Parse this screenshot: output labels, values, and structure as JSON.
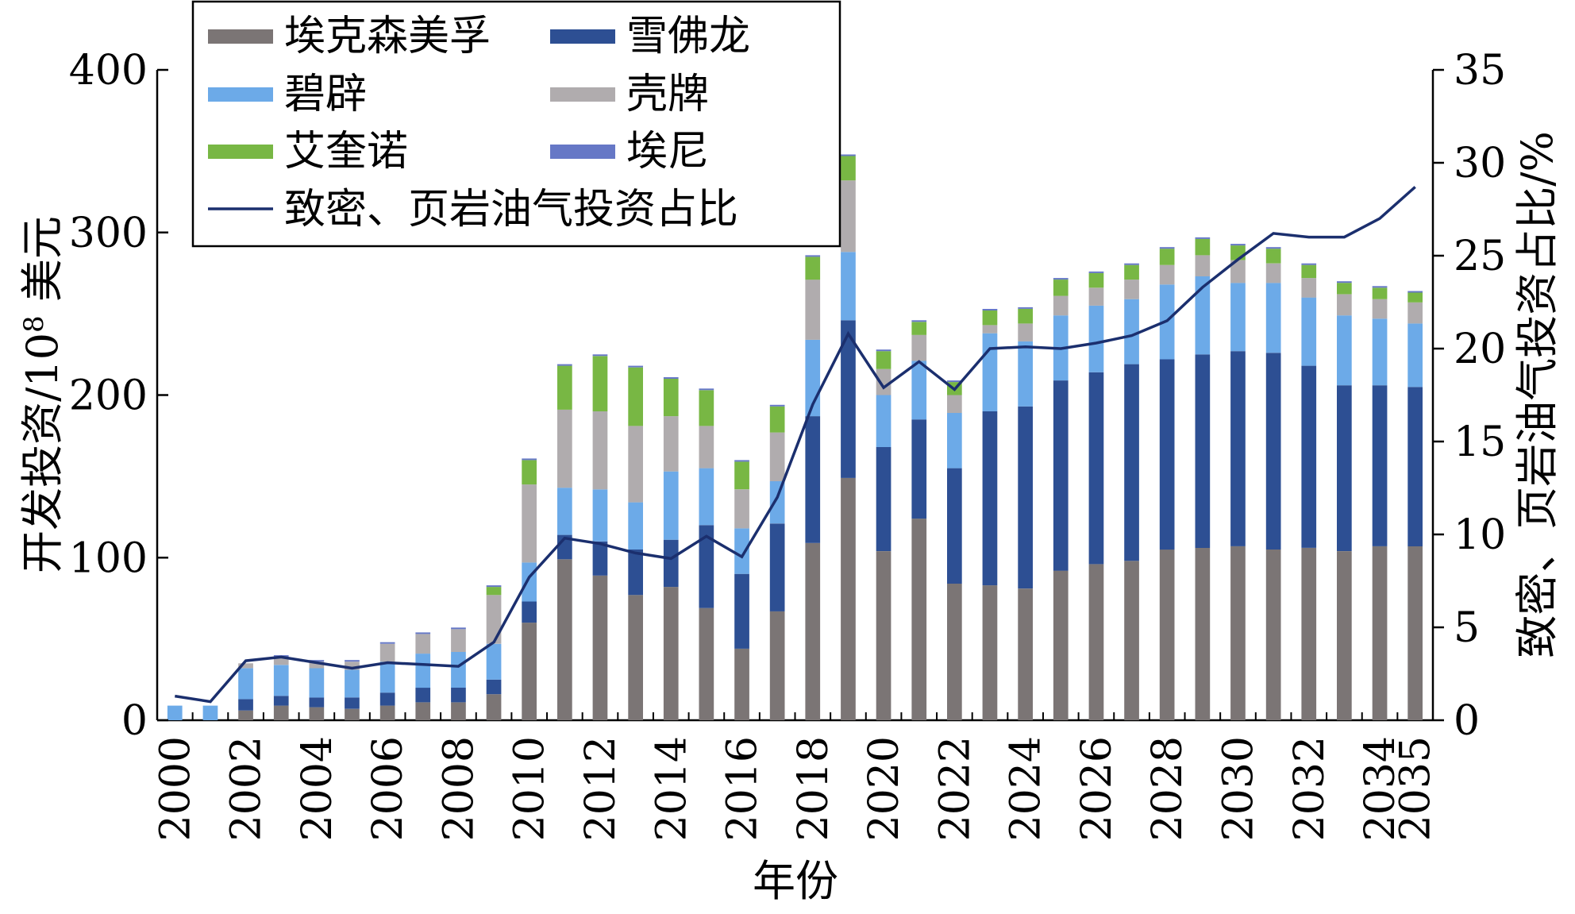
{
  "chart_data": {
    "type": "bar",
    "stacked": true,
    "xlabel": "年份",
    "ylabel": "开发投资/10⁸ 美元",
    "ylabel_parts": [
      "开发投资/10",
      "8",
      " 美元"
    ],
    "y2label": "致密、页岩油气投资占比/%",
    "ylim": [
      0,
      400
    ],
    "y2lim": [
      0,
      35
    ],
    "yticks": [
      "0",
      "100",
      "200",
      "300",
      "400"
    ],
    "y2ticks": [
      "0",
      "5",
      "10",
      "15",
      "20",
      "25",
      "30",
      "35"
    ],
    "x_tick_labels": [
      "2000",
      "2002",
      "2004",
      "2006",
      "2008",
      "2010",
      "2012",
      "2014",
      "2016",
      "2018",
      "2020",
      "2022",
      "2024",
      "2026",
      "2028",
      "2030",
      "2032",
      "2034",
      "2035"
    ],
    "categories": [
      2000,
      2001,
      2002,
      2003,
      2004,
      2005,
      2006,
      2007,
      2008,
      2009,
      2010,
      2011,
      2012,
      2013,
      2014,
      2015,
      2016,
      2017,
      2018,
      2019,
      2020,
      2021,
      2022,
      2023,
      2024,
      2025,
      2026,
      2027,
      2028,
      2029,
      2030,
      2031,
      2032,
      2033,
      2034,
      2035
    ],
    "series": [
      {
        "name": "埃克森美孚",
        "color": "#7b7575",
        "values": [
          0,
          0,
          6,
          9,
          8,
          7,
          9,
          11,
          11,
          16,
          60,
          99,
          89,
          77,
          82,
          69,
          44,
          67,
          109,
          149,
          104,
          124,
          84,
          83,
          81,
          92,
          96,
          98,
          105,
          106,
          107,
          105,
          106,
          104,
          107,
          107
        ]
      },
      {
        "name": "雪佛龙",
        "color": "#2d4f93",
        "values": [
          0,
          0,
          7,
          6,
          6,
          7,
          8,
          9,
          9,
          9,
          13,
          15,
          21,
          28,
          29,
          51,
          46,
          54,
          78,
          97,
          64,
          61,
          71,
          107,
          112,
          117,
          118,
          121,
          117,
          119,
          120,
          121,
          112,
          102,
          99,
          98
        ]
      },
      {
        "name": "碧辟",
        "color": "#6caae8",
        "values": [
          9,
          9,
          19,
          19,
          18,
          17,
          19,
          21,
          22,
          22,
          24,
          29,
          32,
          29,
          42,
          35,
          28,
          26,
          47,
          42,
          32,
          36,
          34,
          48,
          40,
          40,
          41,
          40,
          46,
          48,
          42,
          43,
          42,
          43,
          41,
          39
        ]
      },
      {
        "name": "壳牌",
        "color": "#b0acae",
        "values": [
          0,
          0,
          3,
          5,
          4,
          5,
          11,
          12,
          14,
          30,
          48,
          48,
          48,
          47,
          34,
          26,
          24,
          30,
          37,
          44,
          16,
          16,
          11,
          5,
          11,
          12,
          11,
          12,
          12,
          13,
          14,
          12,
          12,
          13,
          12,
          13
        ]
      },
      {
        "name": "艾奎诺",
        "color": "#78b744",
        "values": [
          0,
          0,
          0,
          0,
          0,
          0,
          0,
          0,
          0,
          5,
          15,
          27,
          34,
          36,
          23,
          22,
          17,
          16,
          14,
          15,
          11,
          8,
          8,
          9,
          9,
          10,
          9,
          9,
          10,
          10,
          9,
          9,
          8,
          7,
          7,
          6
        ]
      },
      {
        "name": "埃尼",
        "color": "#6678c6",
        "values": [
          0,
          0,
          0,
          1,
          1,
          1,
          1,
          1,
          1,
          1,
          1,
          1,
          1,
          1,
          1,
          1,
          1,
          1,
          1,
          1,
          1,
          1,
          1,
          1,
          1,
          1,
          1,
          1,
          1,
          1,
          1,
          1,
          1,
          1,
          1,
          1
        ]
      }
    ],
    "line": {
      "name": "致密、页岩油气投资占比",
      "color": "#1b2f6e",
      "axis": "right",
      "values": [
        1.3,
        1.0,
        3.2,
        3.4,
        3.1,
        2.8,
        3.1,
        3.0,
        2.9,
        4.2,
        7.7,
        9.8,
        9.5,
        9.0,
        8.7,
        9.9,
        8.8,
        12.0,
        17.0,
        20.8,
        17.9,
        19.3,
        17.8,
        20.0,
        20.1,
        20.0,
        20.3,
        20.7,
        21.5,
        23.3,
        24.8,
        26.2,
        26.0,
        26.0,
        27.0,
        28.7
      ]
    },
    "legend": {
      "position": "top-left",
      "columns": 2
    }
  }
}
